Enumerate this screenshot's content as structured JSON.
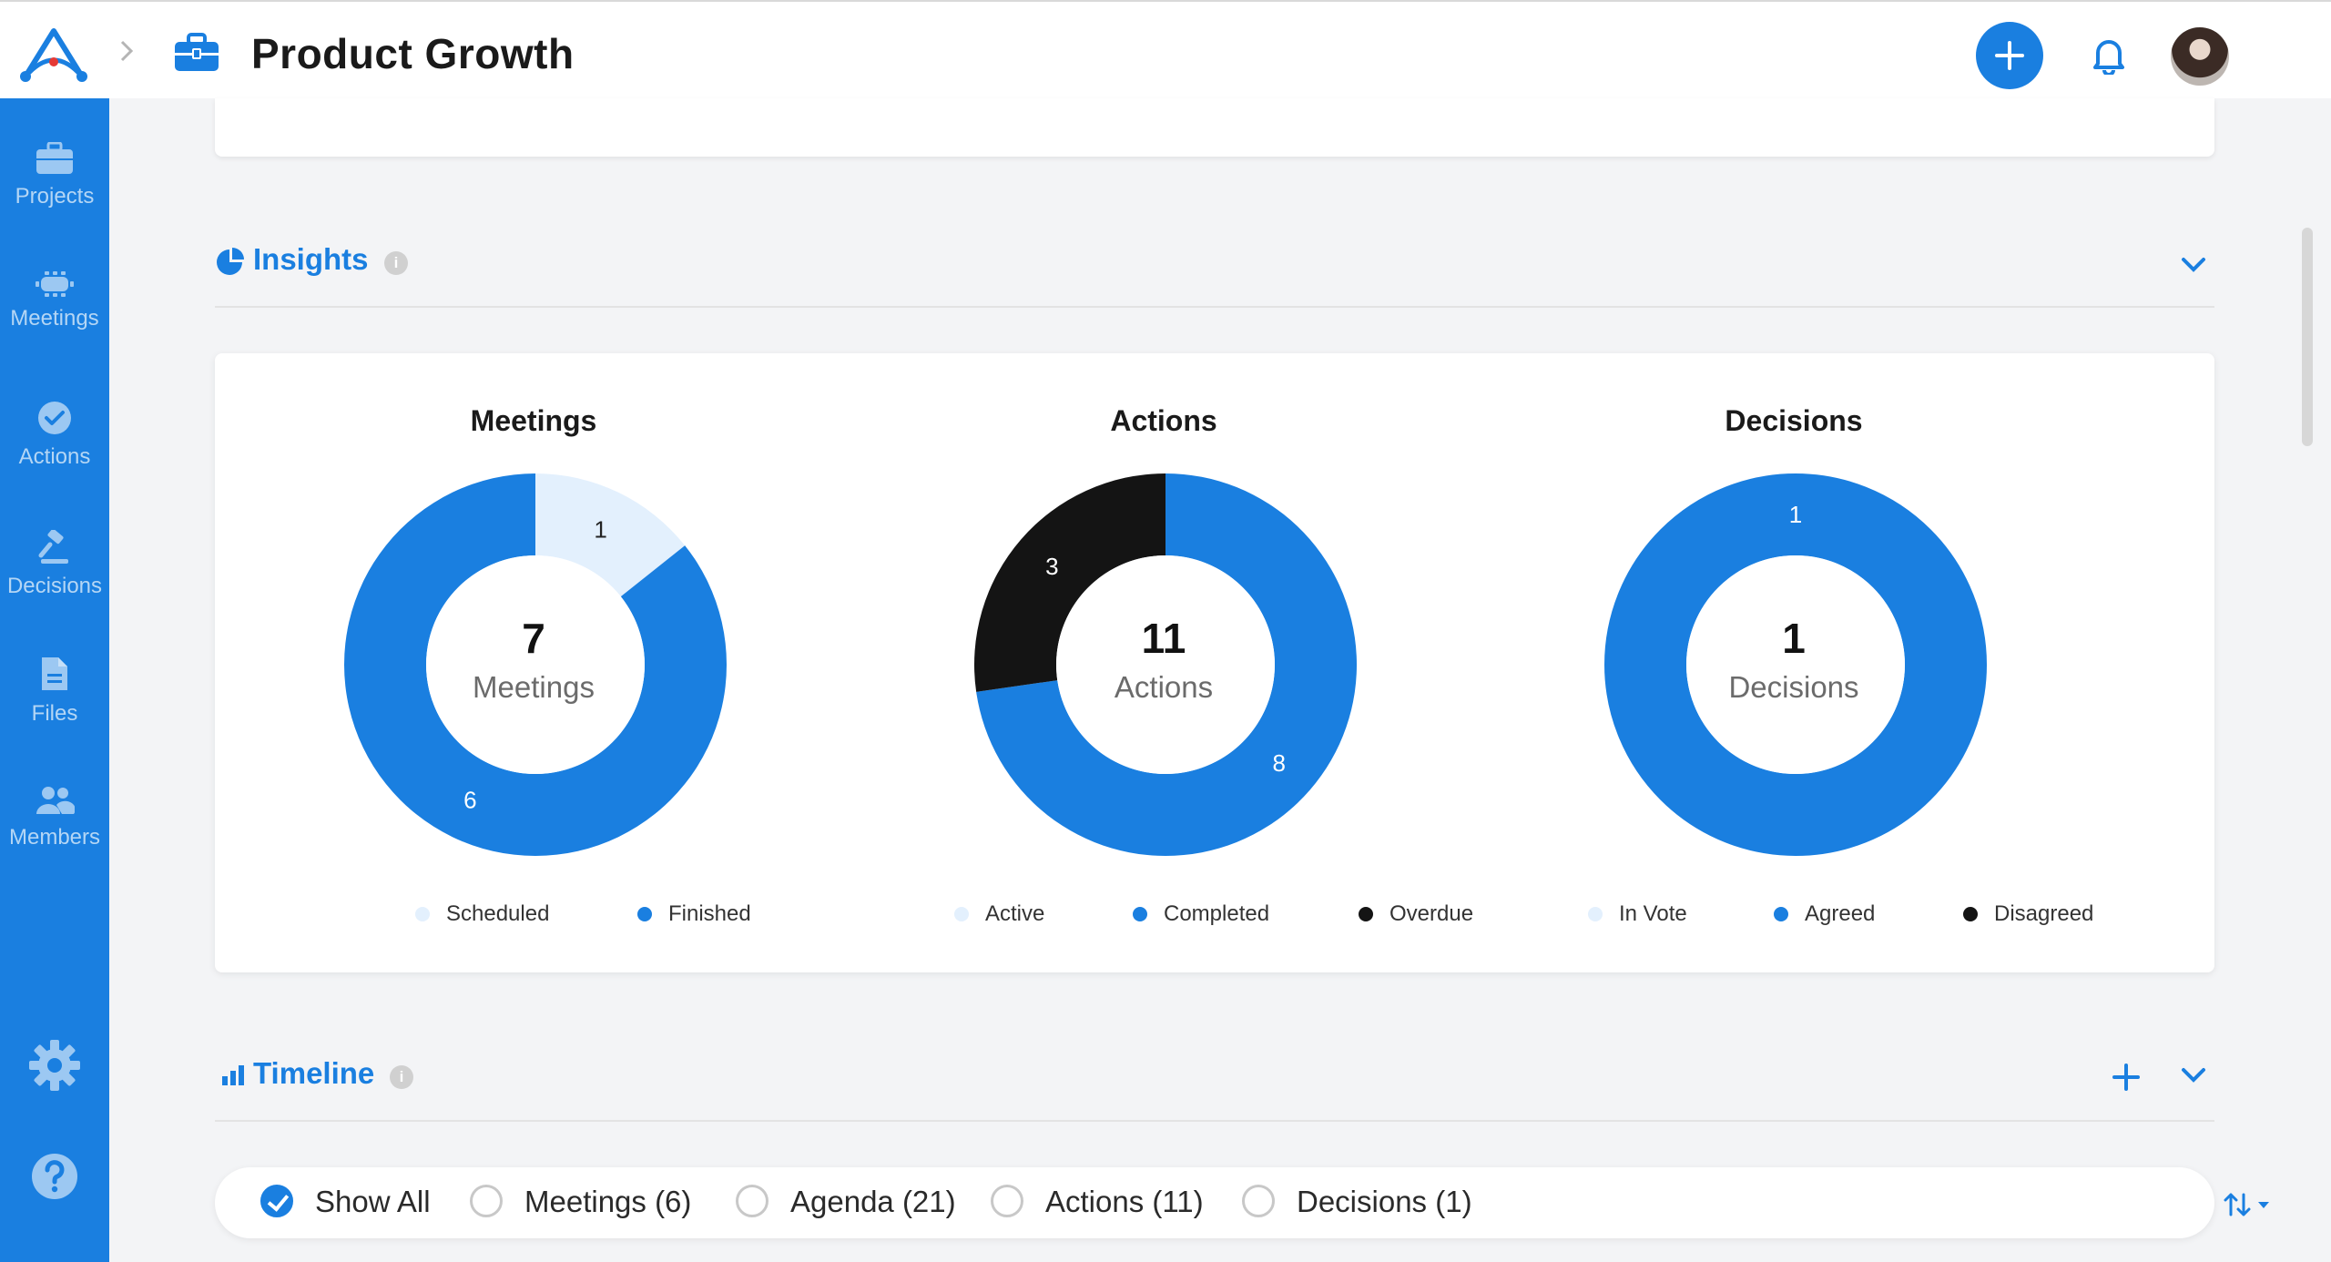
{
  "header": {
    "title": "Product Growth",
    "logo_icon": "logo-icon",
    "breadcrumb_icon": "briefcase-icon",
    "add_icon": "plus-icon",
    "notification_icon": "bell-icon"
  },
  "sidebar": {
    "items": [
      {
        "label": "Projects",
        "icon": "briefcase-icon"
      },
      {
        "label": "Meetings",
        "icon": "meeting-table-icon"
      },
      {
        "label": "Actions",
        "icon": "check-circle-icon"
      },
      {
        "label": "Decisions",
        "icon": "gavel-icon"
      },
      {
        "label": "Files",
        "icon": "file-icon"
      },
      {
        "label": "Members",
        "icon": "people-icon"
      }
    ],
    "settings_icon": "gear-icon",
    "help_icon": "help-icon"
  },
  "insights": {
    "title": "Insights",
    "info": "i",
    "charts": [
      {
        "title": "Meetings",
        "total": "7",
        "center_label": "Meetings",
        "legend": [
          {
            "name": "Scheduled",
            "color": "#e3f0fd"
          },
          {
            "name": "Finished",
            "color": "#1a7fe0"
          }
        ]
      },
      {
        "title": "Actions",
        "total": "11",
        "center_label": "Actions",
        "legend": [
          {
            "name": "Active",
            "color": "#e3f0fd"
          },
          {
            "name": "Completed",
            "color": "#1a7fe0"
          },
          {
            "name": "Overdue",
            "color": "#141414"
          }
        ]
      },
      {
        "title": "Decisions",
        "total": "1",
        "center_label": "Decisions",
        "legend": [
          {
            "name": "In Vote",
            "color": "#e3f0fd"
          },
          {
            "name": "Agreed",
            "color": "#1a7fe0"
          },
          {
            "name": "Disagreed",
            "color": "#141414"
          }
        ]
      }
    ]
  },
  "chart_data": [
    {
      "type": "pie",
      "title": "Meetings",
      "categories": [
        "Scheduled",
        "Finished"
      ],
      "values": [
        1,
        6
      ],
      "colors": [
        "#e3f0fd",
        "#1a7fe0"
      ],
      "legend_position": "bottom"
    },
    {
      "type": "pie",
      "title": "Actions",
      "categories": [
        "Active",
        "Completed",
        "Overdue"
      ],
      "values": [
        0,
        8,
        3
      ],
      "colors": [
        "#e3f0fd",
        "#1a7fe0",
        "#141414"
      ],
      "legend_position": "bottom"
    },
    {
      "type": "pie",
      "title": "Decisions",
      "categories": [
        "In Vote",
        "Agreed",
        "Disagreed"
      ],
      "values": [
        0,
        1,
        0
      ],
      "colors": [
        "#e3f0fd",
        "#1a7fe0",
        "#141414"
      ],
      "legend_position": "bottom"
    }
  ],
  "timeline": {
    "title": "Timeline",
    "info": "i",
    "filters": [
      {
        "label": "Show All",
        "selected": true
      },
      {
        "label": "Meetings (6)",
        "selected": false
      },
      {
        "label": "Agenda (21)",
        "selected": false
      },
      {
        "label": "Actions (11)",
        "selected": false
      },
      {
        "label": "Decisions (1)",
        "selected": false
      }
    ],
    "sort_icon": "sort-icon"
  },
  "colors": {
    "accent": "#1a7fe0",
    "light": "#e3f0fd",
    "dark": "#141414"
  }
}
